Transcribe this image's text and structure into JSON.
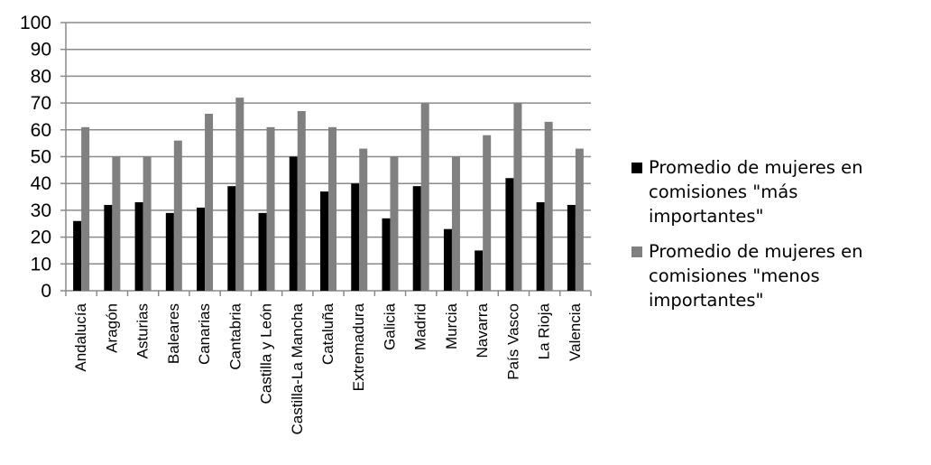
{
  "chart_data": {
    "type": "bar",
    "title": "",
    "xlabel": "",
    "ylabel": "",
    "ylim": [
      0,
      100
    ],
    "yticks": [
      0,
      10,
      20,
      30,
      40,
      50,
      60,
      70,
      80,
      90,
      100
    ],
    "grid": true,
    "legend_position": "right",
    "categories": [
      "Andalucía",
      "Aragón",
      "Asturias",
      "Baleares",
      "Canarias",
      "Cantabria",
      "Castilla y León",
      "Castilla-La Mancha",
      "Cataluña",
      "Extremadura",
      "Galicia",
      "Madrid",
      "Murcia",
      "Navarra",
      "País Vasco",
      "La Rioja",
      "Valencia"
    ],
    "series": [
      {
        "name": "Promedio  de mujeres en\ncomisiones \"más\nimportantes\"",
        "color": "#000000",
        "values": [
          26,
          32,
          33,
          29,
          31,
          39,
          29,
          50,
          37,
          40,
          27,
          39,
          23,
          15,
          42,
          33,
          32
        ]
      },
      {
        "name": "Promedio de mujeres en\ncomisiones \"menos\nimportantes\"",
        "color": "#808080",
        "values": [
          61,
          50,
          50,
          56,
          66,
          72,
          61,
          67,
          61,
          53,
          50,
          70,
          50,
          58,
          70,
          63,
          53
        ]
      }
    ]
  }
}
